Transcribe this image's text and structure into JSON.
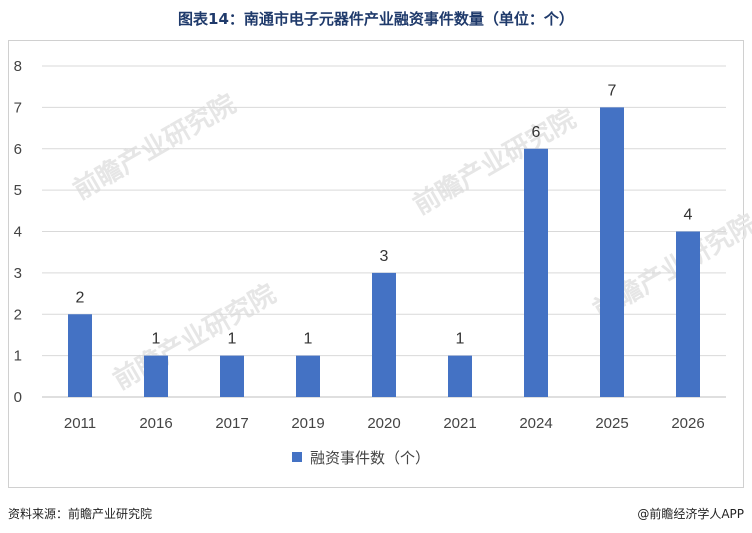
{
  "title": "图表14：南通市电子元器件产业融资事件数量（单位：个）",
  "footer": {
    "source": "资料来源：前瞻产业研究院",
    "brand": "@前瞻经济学人APP"
  },
  "colors": {
    "bar": "#4472c4",
    "title": "#1f3a6b",
    "grid": "#d9d9d9"
  },
  "chart_data": {
    "type": "bar",
    "title": "图表14：南通市电子元器件产业融资事件数量（单位：个）",
    "categories": [
      "2011",
      "2016",
      "2017",
      "2019",
      "2020",
      "2021",
      "2024",
      "2025",
      "2026"
    ],
    "series": [
      {
        "name": "融资事件数（个）",
        "values": [
          2,
          1,
          1,
          1,
          3,
          1,
          6,
          7,
          4
        ]
      }
    ],
    "xlabel": "",
    "ylabel": "",
    "ylim": [
      0,
      8
    ],
    "yticks": [
      0,
      1,
      2,
      3,
      4,
      5,
      6,
      7,
      8
    ],
    "grid": true,
    "legend": "bottom"
  }
}
